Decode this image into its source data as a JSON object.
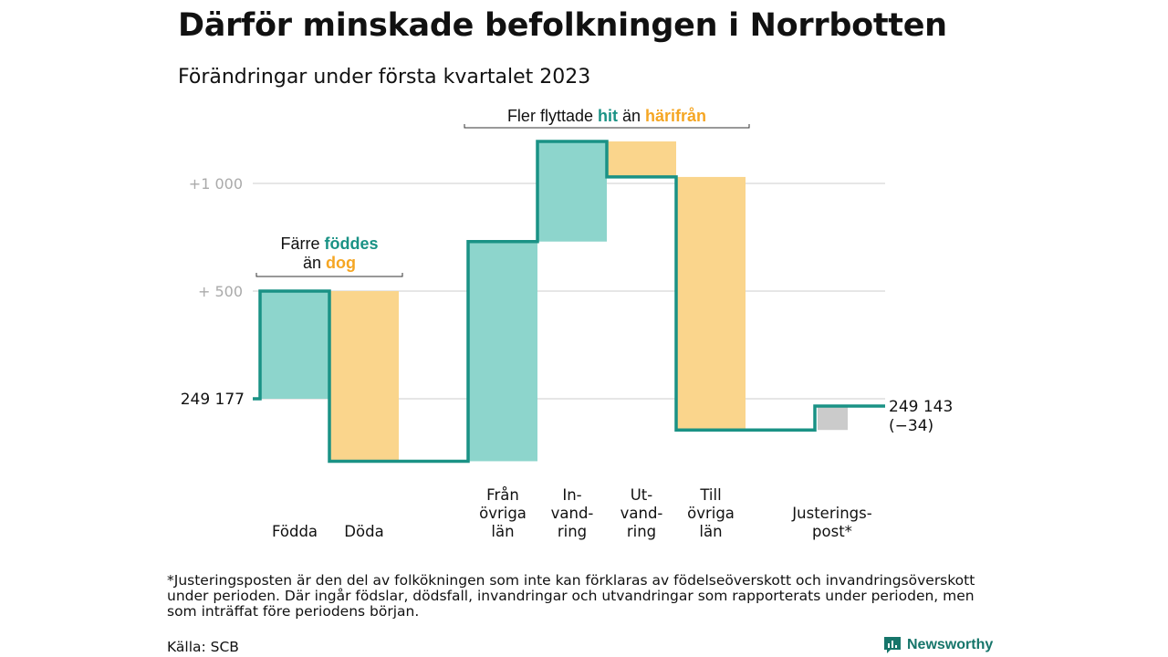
{
  "title": "Därför minskade befolkningen i Norrbotten",
  "subtitle": "Förändringar under första kvartalet 2023",
  "colors": {
    "line": "#1a9285",
    "increase": "#8dd5cc",
    "decrease": "#fad58c",
    "adjustment": "#cbcbcb",
    "highlight_teal": "#1a9285",
    "highlight_orange": "#f5a623",
    "grid": "#dddddd",
    "tick": "#aaaaaa"
  },
  "chart_data": {
    "type": "waterfall",
    "start": 249177,
    "end": 249143,
    "start_label": "249 177",
    "end_label": "249 143",
    "end_change_label": "(−34)",
    "y_ticks": [
      {
        "offset": 1000,
        "label": "+1 000"
      },
      {
        "offset": 500,
        "label": "+ 500"
      },
      {
        "offset": 0,
        "label": ""
      }
    ],
    "ylim_offset": [
      -300,
      1200
    ],
    "steps": [
      {
        "label_lines": [
          "Födda"
        ],
        "change": 500,
        "kind": "increase"
      },
      {
        "label_lines": [
          "Döda"
        ],
        "change": -790,
        "kind": "decrease"
      },
      {
        "label_lines": [
          "Från",
          "övriga",
          "län"
        ],
        "change": 1020,
        "kind": "increase"
      },
      {
        "label_lines": [
          "In-",
          "vand-",
          "ring"
        ],
        "change": 465,
        "kind": "increase"
      },
      {
        "label_lines": [
          "Ut-",
          "vand-",
          "ring"
        ],
        "change": -165,
        "kind": "decrease"
      },
      {
        "label_lines": [
          "Till",
          "övriga",
          "län"
        ],
        "change": -1175,
        "kind": "decrease"
      },
      {
        "label_lines": [
          "Justerings-",
          "post*"
        ],
        "change": 111,
        "kind": "adjustment"
      }
    ],
    "annotations": [
      {
        "lines": [
          [
            {
              "text": "Färre ",
              "style": "plain"
            },
            {
              "text": "föddes",
              "style": "teal"
            }
          ],
          [
            {
              "text": "än ",
              "style": "plain"
            },
            {
              "text": "dog",
              "style": "orange"
            }
          ]
        ],
        "span_steps": [
          0,
          1
        ]
      },
      {
        "lines": [
          [
            {
              "text": "Fler flyttade ",
              "style": "plain"
            },
            {
              "text": "hit",
              "style": "teal"
            },
            {
              "text": " än ",
              "style": "plain"
            },
            {
              "text": "härifrån",
              "style": "orange"
            }
          ]
        ],
        "span_steps": [
          2,
          5
        ]
      }
    ]
  },
  "footnote": "*Justeringsposten är den del av folkökningen som inte kan förklaras av födelseöverskott och invandringsöverskott under perioden. Där ingår födslar, dödsfall, invandringar och utvandringar som rapporterats under perioden, men som inträffat före periodens början.",
  "source": "Källa: SCB",
  "brand": {
    "name": "Newsworthy",
    "icon": "bar-chart-logo-icon"
  }
}
